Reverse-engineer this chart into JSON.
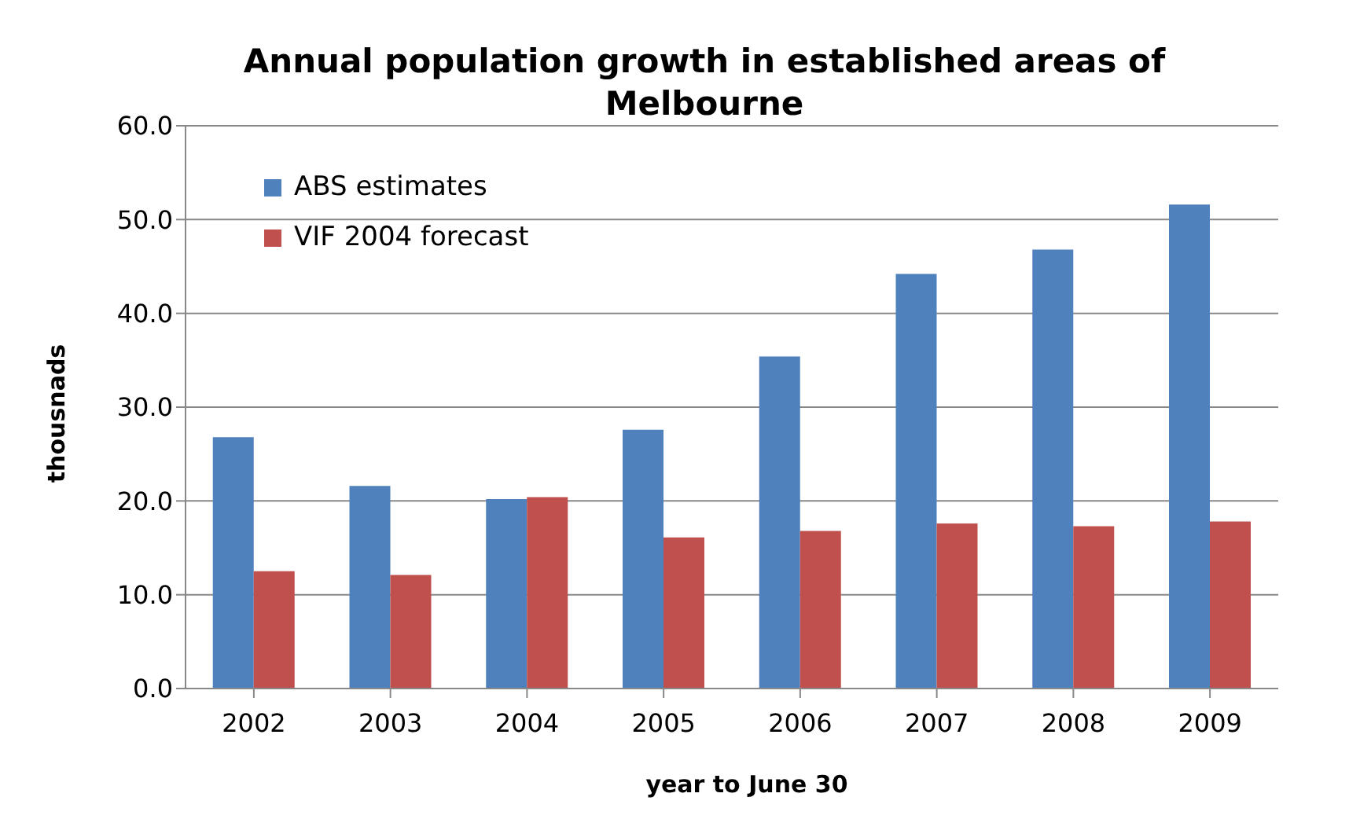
{
  "chart_data": {
    "type": "bar",
    "title": "Annual population growth in established areas of Melbourne",
    "xlabel": "year to June 30",
    "ylabel": "thousnads",
    "categories": [
      "2002",
      "2003",
      "2004",
      "2005",
      "2006",
      "2007",
      "2008",
      "2009"
    ],
    "series": [
      {
        "name": "ABS estimates",
        "color": "#4f81bd",
        "values": [
          26.8,
          21.6,
          20.2,
          27.6,
          35.4,
          44.2,
          46.8,
          51.6
        ]
      },
      {
        "name": "VIF 2004 forecast",
        "color": "#c0504d",
        "values": [
          12.5,
          12.1,
          20.4,
          16.1,
          16.8,
          17.6,
          17.3,
          17.8
        ]
      }
    ],
    "ylim": [
      0,
      60
    ],
    "yticks": [
      {
        "value": 0,
        "label": "0.0"
      },
      {
        "value": 10,
        "label": "10.0"
      },
      {
        "value": 20,
        "label": "20.0"
      },
      {
        "value": 30,
        "label": "30.0"
      },
      {
        "value": 40,
        "label": "40.0"
      },
      {
        "value": 50,
        "label": "50.0"
      },
      {
        "value": 60,
        "label": "60.0"
      }
    ],
    "grid": "y",
    "legend": "top left"
  }
}
